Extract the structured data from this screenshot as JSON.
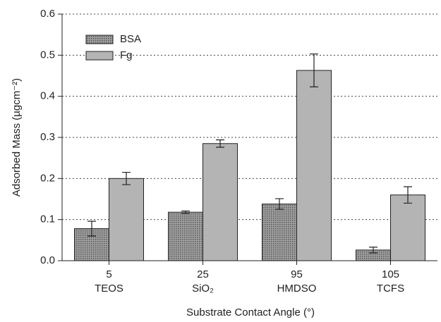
{
  "chart_data": {
    "type": "bar",
    "categories": [
      "5",
      "25",
      "95",
      "105"
    ],
    "category_sublabels": [
      "TEOS",
      "SiO₂",
      "HMDSO",
      "TCFS"
    ],
    "series": [
      {
        "name": "BSA",
        "color": "#8c8c8c",
        "values": [
          0.078,
          0.118,
          0.138,
          0.026
        ],
        "errors": [
          0.018,
          0.003,
          0.013,
          0.007
        ]
      },
      {
        "name": "Fg",
        "color": "#b4b4b4",
        "values": [
          0.2,
          0.285,
          0.463,
          0.16
        ],
        "errors": [
          0.015,
          0.009,
          0.04,
          0.02
        ]
      }
    ],
    "ylabel": "Adsorbed Mass (µgcm⁻²)",
    "xlabel": "Substrate Contact Angle (°)",
    "ylim": [
      0,
      0.6
    ],
    "yticks": [
      {
        "value": 0,
        "label": "0.0"
      },
      0.1,
      0.2,
      0.3,
      0.4,
      0.5,
      0.6
    ],
    "grid": true,
    "legend": "upper left"
  }
}
